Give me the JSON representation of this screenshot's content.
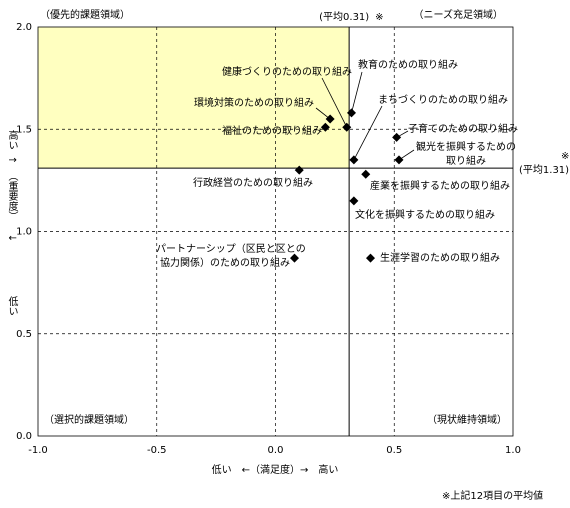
{
  "chart_data": {
    "type": "scatter",
    "xlabel": "低い　←（満足度）→　高い",
    "ylabel": [
      "高い",
      "↑",
      "（重要度）",
      "↓",
      "低い"
    ],
    "xlim": [
      -1,
      1
    ],
    "xticks": [
      {
        "value": -1,
        "label": "-1.0"
      },
      -0.5,
      {
        "value": 0,
        "label": "0.0"
      },
      0.5,
      {
        "value": 1,
        "label": "1.0"
      }
    ],
    "ylim": [
      0,
      2
    ],
    "yticks": [
      {
        "value": 0,
        "label": "0.0"
      },
      0.5,
      {
        "value": 1,
        "label": "1.0"
      },
      1.5,
      {
        "value": 2,
        "label": "2.0"
      }
    ],
    "grid": true,
    "quadrants": {
      "top_left": "（優先的課題領域）",
      "top_right": "（ニーズ充足領域）",
      "bottom_left": "（選択的課題領域）",
      "bottom_right": "（現状維持領域）"
    },
    "highlight_color": "#ffffc0",
    "x_mean": {
      "value": 0.31,
      "label": "(平均0.31)"
    },
    "y_mean": {
      "value": 1.31,
      "label": "(平均1.31)"
    },
    "note_mark": "※",
    "footnote": "※上記12項目の平均値",
    "color": "#000000",
    "points": [
      {
        "label": [
          "教育のための取り組み"
        ],
        "x": 0.32,
        "y": 1.58
      },
      {
        "label": [
          "健康づくりのための取り組み"
        ],
        "x": 0.3,
        "y": 1.51
      },
      {
        "label": [
          "環境対策のための取り組み"
        ],
        "x": 0.23,
        "y": 1.55
      },
      {
        "label": [
          "福祉のための取り組み"
        ],
        "x": 0.21,
        "y": 1.51
      },
      {
        "label": [
          "まちづくりのための取り組み"
        ],
        "x": 0.33,
        "y": 1.35
      },
      {
        "label": [
          "子育てのための取り組み"
        ],
        "x": 0.51,
        "y": 1.46
      },
      {
        "label": [
          "観光を振興するための",
          "取り組み"
        ],
        "x": 0.52,
        "y": 1.35
      },
      {
        "label": [
          "行政経営のための取り組み"
        ],
        "x": 0.1,
        "y": 1.3
      },
      {
        "label": [
          "産業を振興するための取り組み"
        ],
        "x": 0.38,
        "y": 1.28
      },
      {
        "label": [
          "文化を振興するための取り組み"
        ],
        "x": 0.33,
        "y": 1.15
      },
      {
        "label": [
          "パートナーシップ（区民と区との",
          "協力関係）のための取り組み"
        ],
        "x": 0.08,
        "y": 0.87
      },
      {
        "label": [
          "生涯学習のための取り組み"
        ],
        "x": 0.4,
        "y": 0.87
      }
    ]
  }
}
